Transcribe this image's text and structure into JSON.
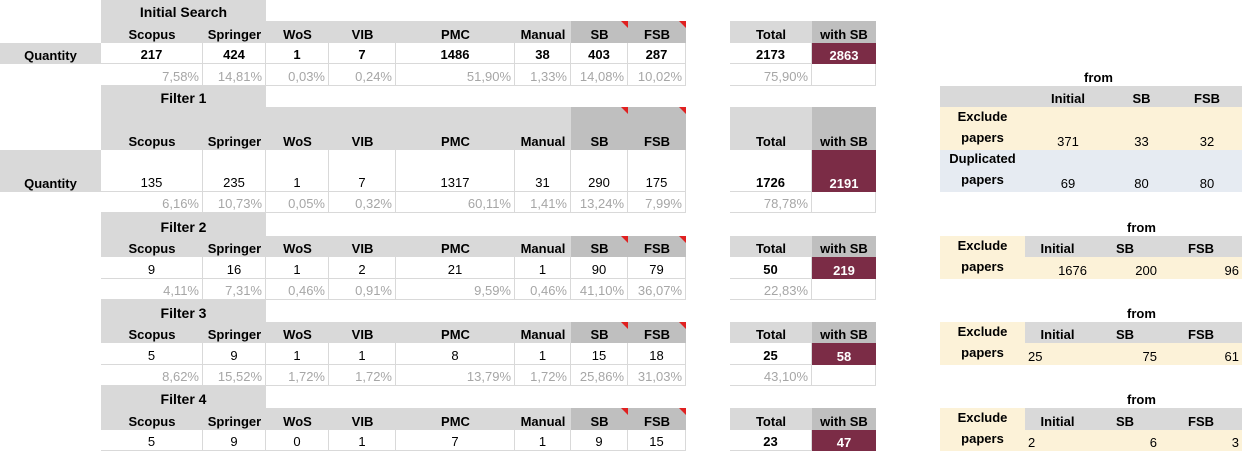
{
  "row_label": "Quantity",
  "columns": [
    "Scopus",
    "Springer",
    "WoS",
    "VIB",
    "PMC",
    "Manual",
    "SB",
    "FSB"
  ],
  "total_label": "Total",
  "with_sb_label": "with SB",
  "from_label": "from",
  "from_columns": [
    "Initial",
    "SB",
    "FSB"
  ],
  "exclude_label_1": "Exclude",
  "exclude_label_2": "papers",
  "duplicated_label_1": "Duplicated",
  "duplicated_label_2": "papers",
  "sections": [
    {
      "title": "Initial Search",
      "values": [
        "217",
        "424",
        "1",
        "7",
        "1486",
        "38",
        "403",
        "287"
      ],
      "total": "2173",
      "with_sb": "2863",
      "percents": [
        "7,58%",
        "14,81%",
        "0,03%",
        "0,24%",
        "51,90%",
        "1,33%",
        "14,08%",
        "10,02%"
      ],
      "total_pct": "75,90%"
    },
    {
      "title": "Filter 1",
      "values": [
        "135",
        "235",
        "1",
        "7",
        "1317",
        "31",
        "290",
        "175"
      ],
      "total": "1726",
      "with_sb": "2191",
      "percents": [
        "6,16%",
        "10,73%",
        "0,05%",
        "0,32%",
        "60,11%",
        "1,41%",
        "13,24%",
        "7,99%"
      ],
      "total_pct": "78,78%",
      "exclude": [
        "371",
        "33",
        "32"
      ],
      "duplicated": [
        "69",
        "80",
        "80"
      ]
    },
    {
      "title": "Filter 2",
      "values": [
        "9",
        "16",
        "1",
        "2",
        "21",
        "1",
        "90",
        "79"
      ],
      "total": "50",
      "with_sb": "219",
      "percents": [
        "4,11%",
        "7,31%",
        "0,46%",
        "0,91%",
        "9,59%",
        "0,46%",
        "41,10%",
        "36,07%"
      ],
      "total_pct": "22,83%",
      "exclude": [
        "1676",
        "200",
        "96"
      ]
    },
    {
      "title": "Filter 3",
      "values": [
        "5",
        "9",
        "1",
        "1",
        "8",
        "1",
        "15",
        "18"
      ],
      "total": "25",
      "with_sb": "58",
      "percents": [
        "8,62%",
        "15,52%",
        "1,72%",
        "1,72%",
        "13,79%",
        "1,72%",
        "25,86%",
        "31,03%"
      ],
      "total_pct": "43,10%",
      "exclude": [
        "25",
        "75",
        "61"
      ]
    },
    {
      "title": "Filter 4",
      "values": [
        "5",
        "9",
        "0",
        "1",
        "7",
        "1",
        "9",
        "15"
      ],
      "total": "23",
      "with_sb": "47",
      "exclude": [
        "2",
        "6",
        "3"
      ]
    }
  ]
}
